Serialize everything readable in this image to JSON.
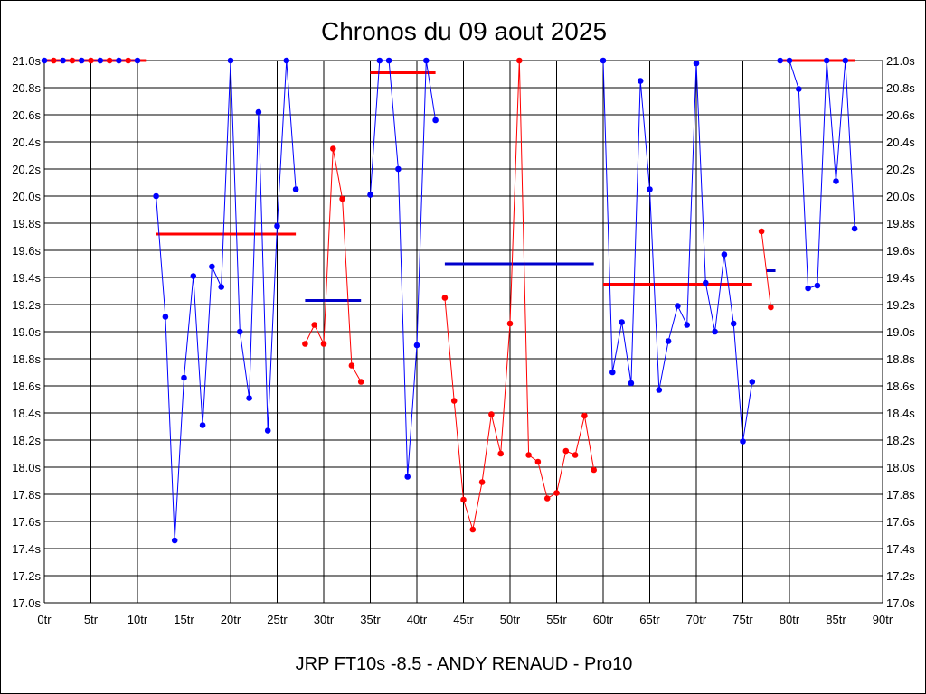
{
  "chart_data": {
    "type": "line",
    "title": "Chronos du 09 aout 2025",
    "footer": "JRP FT10s -8.5 - ANDY RENAUD - Pro10",
    "xlim": [
      0,
      90
    ],
    "ylim": [
      17.0,
      21.0
    ],
    "x_ticks": [
      0,
      5,
      10,
      15,
      20,
      25,
      30,
      35,
      40,
      45,
      50,
      55,
      60,
      65,
      70,
      75,
      80,
      85,
      90
    ],
    "x_tick_labels": [
      "0tr",
      "5tr",
      "10tr",
      "15tr",
      "20tr",
      "25tr",
      "30tr",
      "35tr",
      "40tr",
      "45tr",
      "50tr",
      "55tr",
      "60tr",
      "65tr",
      "70tr",
      "75tr",
      "80tr",
      "85tr",
      "90tr"
    ],
    "y_ticks": [
      17.0,
      17.2,
      17.4,
      17.6,
      17.8,
      18.0,
      18.2,
      18.4,
      18.6,
      18.8,
      19.0,
      19.2,
      19.4,
      19.6,
      19.8,
      20.0,
      20.2,
      20.4,
      20.6,
      20.8,
      21.0
    ],
    "y_tick_labels": [
      "17.0s",
      "17.2s",
      "17.4s",
      "17.6s",
      "17.8s",
      "18.0s",
      "18.2s",
      "18.4s",
      "18.6s",
      "18.8s",
      "19.0s",
      "19.2s",
      "19.4s",
      "19.6s",
      "19.8s",
      "20.0s",
      "20.2s",
      "20.4s",
      "20.6s",
      "20.8s",
      "21.0s"
    ],
    "grid": true,
    "colors": {
      "blue": "#0000ff",
      "red": "#ff0000",
      "avg_blue": "#0000cc"
    },
    "series": [
      {
        "color": "blue",
        "points": [
          [
            0,
            21.0
          ],
          [
            1,
            21.0
          ],
          [
            2,
            21.0
          ],
          [
            3,
            21.0
          ],
          [
            4,
            21.0
          ],
          [
            5,
            21.0
          ],
          [
            6,
            21.0
          ],
          [
            7,
            21.0
          ],
          [
            8,
            21.0
          ],
          [
            9,
            21.0
          ],
          [
            10,
            21.0
          ]
        ]
      },
      {
        "color": "blue",
        "points": [
          [
            12,
            20.0
          ],
          [
            13,
            19.11
          ],
          [
            14,
            17.46
          ],
          [
            15,
            18.66
          ],
          [
            16,
            19.41
          ],
          [
            17,
            18.31
          ],
          [
            18,
            19.48
          ],
          [
            19,
            19.33
          ],
          [
            20,
            21.0
          ],
          [
            21,
            19.0
          ],
          [
            22,
            18.51
          ],
          [
            23,
            20.62
          ],
          [
            24,
            18.27
          ],
          [
            25,
            19.78
          ],
          [
            26,
            21.0
          ],
          [
            27,
            20.05
          ]
        ]
      },
      {
        "color": "red",
        "points": [
          [
            28,
            18.91
          ],
          [
            29,
            19.05
          ],
          [
            30,
            18.91
          ],
          [
            31,
            20.35
          ],
          [
            32,
            19.98
          ],
          [
            33,
            18.75
          ],
          [
            34,
            18.63
          ]
        ]
      },
      {
        "color": "blue",
        "points": [
          [
            35,
            20.01
          ],
          [
            36,
            21.0
          ],
          [
            37,
            21.0
          ],
          [
            38,
            20.2
          ],
          [
            39,
            17.93
          ],
          [
            40,
            18.9
          ],
          [
            41,
            21.0
          ],
          [
            42,
            20.56
          ]
        ]
      },
      {
        "color": "red",
        "points": [
          [
            43,
            19.25
          ],
          [
            44,
            18.49
          ],
          [
            45,
            17.76
          ],
          [
            46,
            17.54
          ],
          [
            47,
            17.89
          ],
          [
            48,
            18.39
          ],
          [
            49,
            18.1
          ],
          [
            50,
            19.06
          ],
          [
            51,
            21.0
          ],
          [
            52,
            18.09
          ],
          [
            53,
            18.04
          ],
          [
            54,
            17.77
          ],
          [
            55,
            17.81
          ],
          [
            56,
            18.12
          ],
          [
            57,
            18.09
          ],
          [
            58,
            18.38
          ],
          [
            59,
            17.98
          ]
        ]
      },
      {
        "color": "blue",
        "points": [
          [
            60,
            21.0
          ],
          [
            61,
            18.7
          ],
          [
            62,
            19.07
          ],
          [
            63,
            18.62
          ],
          [
            64,
            20.85
          ],
          [
            65,
            20.05
          ],
          [
            66,
            18.57
          ],
          [
            67,
            18.93
          ],
          [
            68,
            19.19
          ],
          [
            69,
            19.05
          ],
          [
            70,
            20.98
          ],
          [
            71,
            19.36
          ],
          [
            72,
            19.0
          ],
          [
            73,
            19.57
          ],
          [
            74,
            19.06
          ],
          [
            75,
            18.19
          ],
          [
            76,
            18.63
          ]
        ]
      },
      {
        "color": "red",
        "points": [
          [
            77,
            19.74
          ],
          [
            78,
            19.18
          ]
        ]
      },
      {
        "color": "blue",
        "points": [
          [
            79,
            21.0
          ],
          [
            80,
            21.0
          ],
          [
            81,
            20.79
          ],
          [
            82,
            19.32
          ],
          [
            83,
            19.34
          ],
          [
            84,
            21.0
          ],
          [
            85,
            20.11
          ],
          [
            86,
            21.0
          ],
          [
            87,
            19.76
          ]
        ]
      }
    ],
    "point_colors": {
      "note": "series 0 markers alternate blue/red",
      "series0": [
        "blue",
        "red",
        "blue",
        "red",
        "blue",
        "red",
        "blue",
        "red",
        "blue",
        "red",
        "blue"
      ]
    },
    "averages": [
      {
        "color": "red",
        "x": [
          0,
          11
        ],
        "y": 21.0
      },
      {
        "color": "red",
        "x": [
          12,
          27
        ],
        "y": 19.72
      },
      {
        "color": "avg_blue",
        "x": [
          28,
          34
        ],
        "y": 19.23
      },
      {
        "color": "red",
        "x": [
          35,
          42
        ],
        "y": 20.91
      },
      {
        "color": "avg_blue",
        "x": [
          43,
          59
        ],
        "y": 19.5
      },
      {
        "color": "red",
        "x": [
          60,
          76
        ],
        "y": 19.35
      },
      {
        "color": "avg_blue",
        "x": [
          77.5,
          78.5
        ],
        "y": 19.45
      },
      {
        "color": "red",
        "x": [
          79,
          87
        ],
        "y": 21.0
      }
    ]
  }
}
